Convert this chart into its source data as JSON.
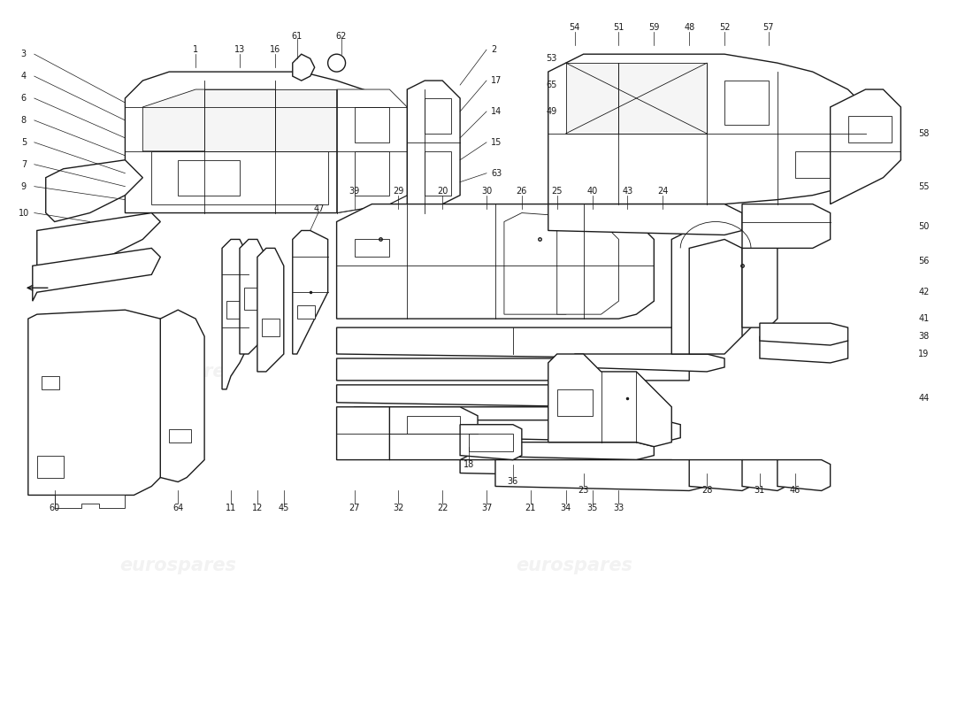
{
  "background_color": "#ffffff",
  "line_color": "#1a1a1a",
  "fig_width": 11.0,
  "fig_height": 8.0,
  "dpi": 100,
  "watermark_text": "eurospares",
  "watermark_color": "#cccccc",
  "label_fontsize": 7.0
}
